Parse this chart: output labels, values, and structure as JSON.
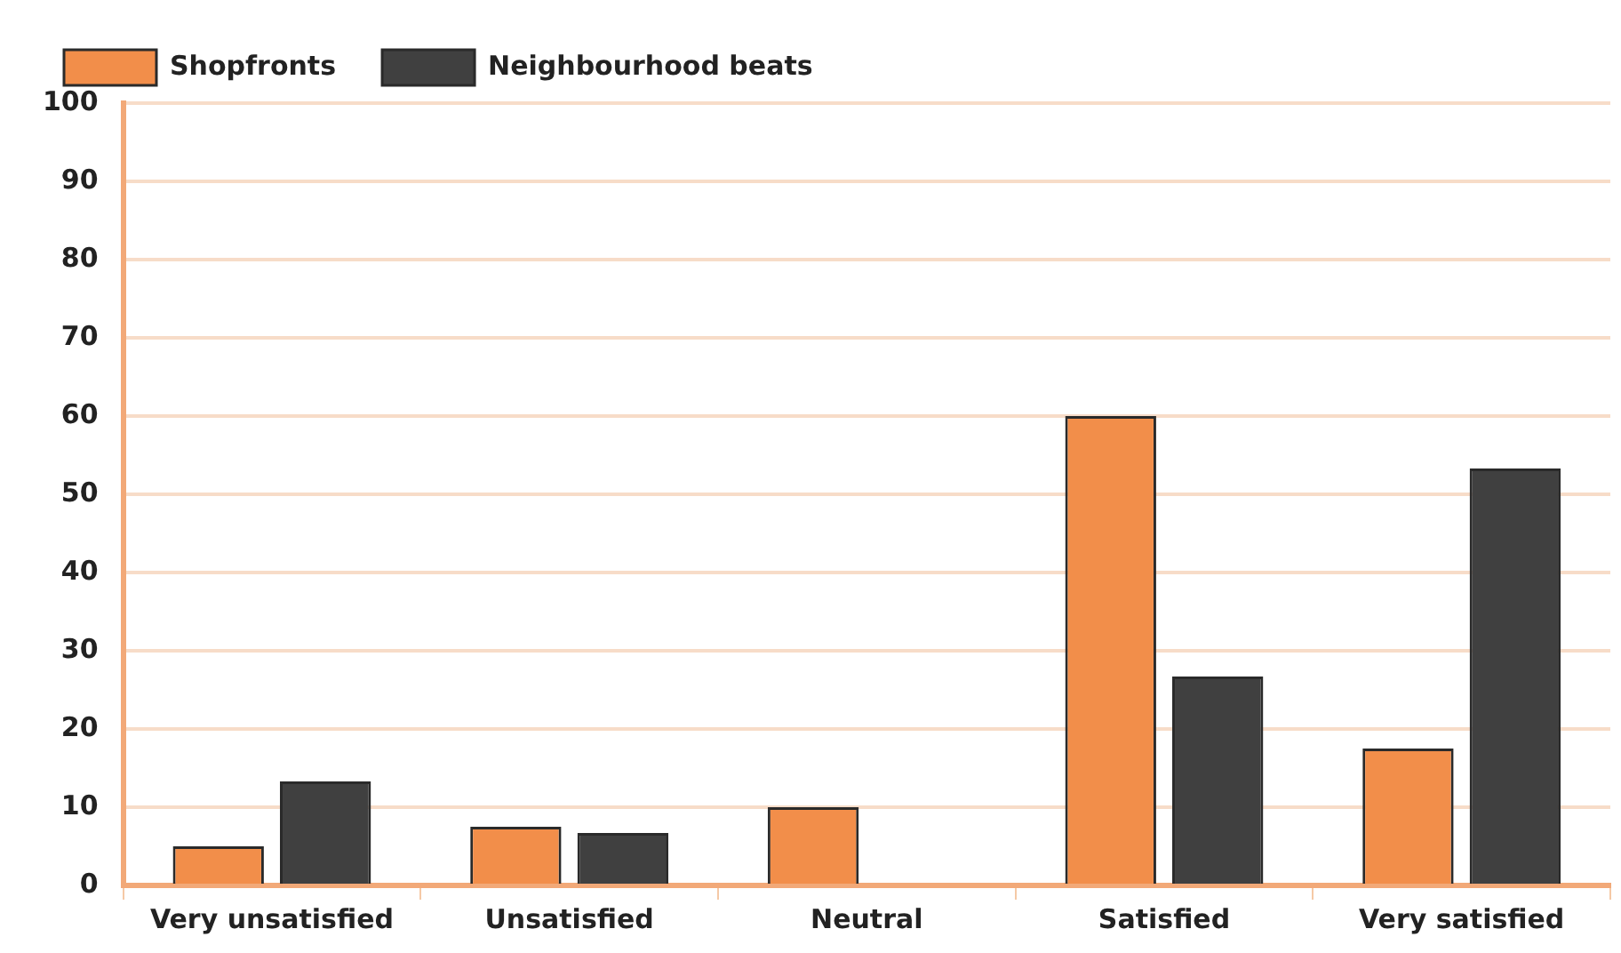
{
  "chart_data": {
    "type": "bar",
    "categories": [
      "Very unsatisfied",
      "Unsatisfied",
      "Neutral",
      "Satisfied",
      "Very satisfied"
    ],
    "series": [
      {
        "name": "Shopfronts",
        "color": "#f28e4a",
        "values": [
          5,
          7.5,
          10,
          60,
          17.5
        ]
      },
      {
        "name": "Neighbourhood beats",
        "color": "#404040",
        "values": [
          13.3,
          6.7,
          0,
          26.7,
          53.3
        ]
      }
    ],
    "ylim": [
      0,
      100
    ],
    "yticks": [
      0,
      10,
      20,
      30,
      40,
      50,
      60,
      70,
      80,
      90,
      100
    ],
    "grid": "y",
    "legend": "top left"
  }
}
